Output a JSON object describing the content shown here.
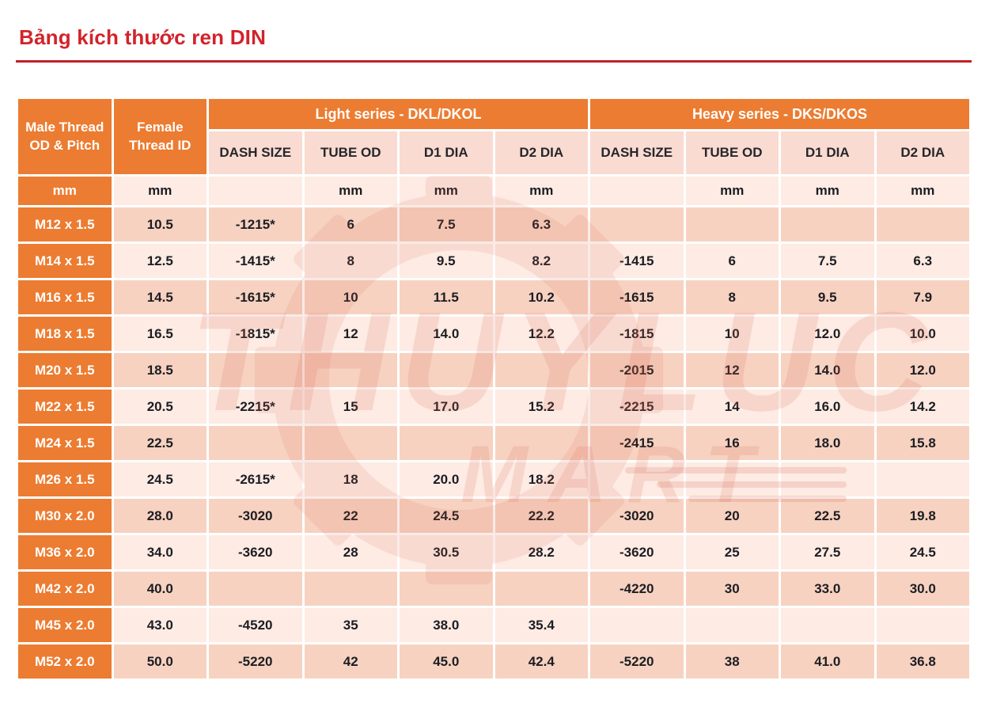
{
  "page_title": "Bảng kích thước ren DIN",
  "watermark": {
    "brand_line1": "THUYLUC",
    "brand_line2": "MART"
  },
  "colors": {
    "title_red": "#d2232a",
    "rule_red": "#c22026",
    "header_orange": "#ec7c31",
    "subheader_pink": "#f9dbd1",
    "row_band_light": "#fdebe4",
    "row_band_dark": "#f7d2c1",
    "data_text": "#1c1d22",
    "header_text": "#ffffff",
    "watermark_tint": "#d96b55"
  },
  "table": {
    "corner_header": "Male Thread OD & Pitch",
    "female_header": "Female Thread ID",
    "groups": [
      {
        "label": "Light series - DKL/DKOL"
      },
      {
        "label": "Heavy series - DKS/DKOS"
      }
    ],
    "sub_headers": [
      "DASH SIZE",
      "TUBE OD",
      "D1 DIA",
      "D2 DIA",
      "DASH SIZE",
      "TUBE OD",
      "D1 DIA",
      "D2 DIA"
    ],
    "units": [
      "mm",
      "mm",
      "",
      "mm",
      "mm",
      "mm",
      "",
      "mm",
      "mm",
      "mm"
    ],
    "rows": [
      [
        "M12 x 1.5",
        "10.5",
        "-1215*",
        "6",
        "7.5",
        "6.3",
        "",
        "",
        "",
        ""
      ],
      [
        "M14 x 1.5",
        "12.5",
        "-1415*",
        "8",
        "9.5",
        "8.2",
        "-1415",
        "6",
        "7.5",
        "6.3"
      ],
      [
        "M16 x 1.5",
        "14.5",
        "-1615*",
        "10",
        "11.5",
        "10.2",
        "-1615",
        "8",
        "9.5",
        "7.9"
      ],
      [
        "M18 x 1.5",
        "16.5",
        "-1815*",
        "12",
        "14.0",
        "12.2",
        "-1815",
        "10",
        "12.0",
        "10.0"
      ],
      [
        "M20 x 1.5",
        "18.5",
        "",
        "",
        "",
        "",
        "-2015",
        "12",
        "14.0",
        "12.0"
      ],
      [
        "M22 x 1.5",
        "20.5",
        "-2215*",
        "15",
        "17.0",
        "15.2",
        "-2215",
        "14",
        "16.0",
        "14.2"
      ],
      [
        "M24 x 1.5",
        "22.5",
        "",
        "",
        "",
        "",
        "-2415",
        "16",
        "18.0",
        "15.8"
      ],
      [
        "M26 x 1.5",
        "24.5",
        "-2615*",
        "18",
        "20.0",
        "18.2",
        "",
        "",
        "",
        ""
      ],
      [
        "M30 x 2.0",
        "28.0",
        "-3020",
        "22",
        "24.5",
        "22.2",
        "-3020",
        "20",
        "22.5",
        "19.8"
      ],
      [
        "M36 x 2.0",
        "34.0",
        "-3620",
        "28",
        "30.5",
        "28.2",
        "-3620",
        "25",
        "27.5",
        "24.5"
      ],
      [
        "M42 x 2.0",
        "40.0",
        "",
        "",
        "",
        "",
        "-4220",
        "30",
        "33.0",
        "30.0"
      ],
      [
        "M45 x 2.0",
        "43.0",
        "-4520",
        "35",
        "38.0",
        "35.4",
        "",
        "",
        "",
        ""
      ],
      [
        "M52 x 2.0",
        "50.0",
        "-5220",
        "42",
        "45.0",
        "42.4",
        "-5220",
        "38",
        "41.0",
        "36.8"
      ]
    ]
  },
  "chart_data": {
    "type": "table",
    "title": "Bảng kích thước ren DIN",
    "columns": [
      "Male Thread OD & Pitch (mm)",
      "Female Thread ID (mm)",
      "Light DASH SIZE",
      "Light TUBE OD (mm)",
      "Light D1 DIA (mm)",
      "Light D2 DIA (mm)",
      "Heavy DASH SIZE",
      "Heavy TUBE OD (mm)",
      "Heavy D1 DIA (mm)",
      "Heavy D2 DIA (mm)"
    ],
    "rows": [
      [
        "M12 x 1.5",
        "10.5",
        "-1215*",
        "6",
        "7.5",
        "6.3",
        "",
        "",
        "",
        ""
      ],
      [
        "M14 x 1.5",
        "12.5",
        "-1415*",
        "8",
        "9.5",
        "8.2",
        "-1415",
        "6",
        "7.5",
        "6.3"
      ],
      [
        "M16 x 1.5",
        "14.5",
        "-1615*",
        "10",
        "11.5",
        "10.2",
        "-1615",
        "8",
        "9.5",
        "7.9"
      ],
      [
        "M18 x 1.5",
        "16.5",
        "-1815*",
        "12",
        "14.0",
        "12.2",
        "-1815",
        "10",
        "12.0",
        "10.0"
      ],
      [
        "M20 x 1.5",
        "18.5",
        "",
        "",
        "",
        "",
        "-2015",
        "12",
        "14.0",
        "12.0"
      ],
      [
        "M22 x 1.5",
        "20.5",
        "-2215*",
        "15",
        "17.0",
        "15.2",
        "-2215",
        "14",
        "16.0",
        "14.2"
      ],
      [
        "M24 x 1.5",
        "22.5",
        "",
        "",
        "",
        "",
        "-2415",
        "16",
        "18.0",
        "15.8"
      ],
      [
        "M26 x 1.5",
        "24.5",
        "-2615*",
        "18",
        "20.0",
        "18.2",
        "",
        "",
        "",
        ""
      ],
      [
        "M30 x 2.0",
        "28.0",
        "-3020",
        "22",
        "24.5",
        "22.2",
        "-3020",
        "20",
        "22.5",
        "19.8"
      ],
      [
        "M36 x 2.0",
        "34.0",
        "-3620",
        "28",
        "30.5",
        "28.2",
        "-3620",
        "25",
        "27.5",
        "24.5"
      ],
      [
        "M42 x 2.0",
        "40.0",
        "",
        "",
        "",
        "",
        "-4220",
        "30",
        "33.0",
        "30.0"
      ],
      [
        "M45 x 2.0",
        "43.0",
        "-4520",
        "35",
        "38.0",
        "35.4",
        "",
        "",
        "",
        ""
      ],
      [
        "M52 x 2.0",
        "50.0",
        "-5220",
        "42",
        "45.0",
        "42.4",
        "-5220",
        "38",
        "41.0",
        "36.8"
      ]
    ]
  }
}
